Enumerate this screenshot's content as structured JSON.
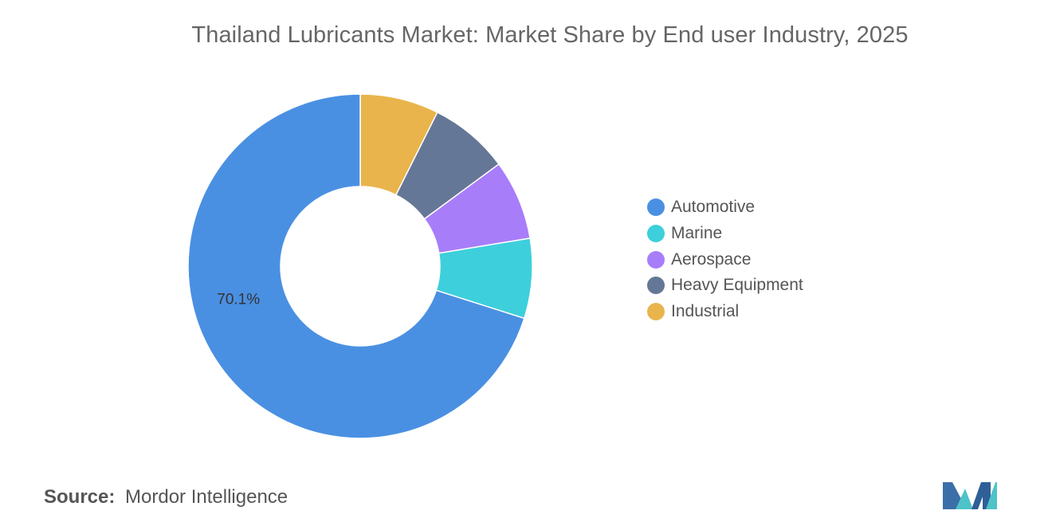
{
  "title": "Thailand Lubricants Market: Market Share by End user Industry, 2025",
  "source": {
    "label": "Source:",
    "name": "Mordor Intelligence"
  },
  "logo": {
    "icon": "mordor-intelligence-logo"
  },
  "chart_data": {
    "type": "pie",
    "style": "donut",
    "title": "Thailand Lubricants Market: Market Share by End user Industry, 2025",
    "unit": "%",
    "legend_position": "right",
    "series": [
      {
        "name": "Automotive",
        "value": 70.1,
        "color": "#4a90e2",
        "label": "70.1%"
      },
      {
        "name": "Marine",
        "value": 7.5,
        "color": "#3ecfdc",
        "label": ""
      },
      {
        "name": "Aerospace",
        "value": 7.5,
        "color": "#a87dfa",
        "label": ""
      },
      {
        "name": "Heavy Equipment",
        "value": 7.5,
        "color": "#657796",
        "label": ""
      },
      {
        "name": "Industrial",
        "value": 7.4,
        "color": "#e9b44c",
        "label": ""
      }
    ]
  }
}
